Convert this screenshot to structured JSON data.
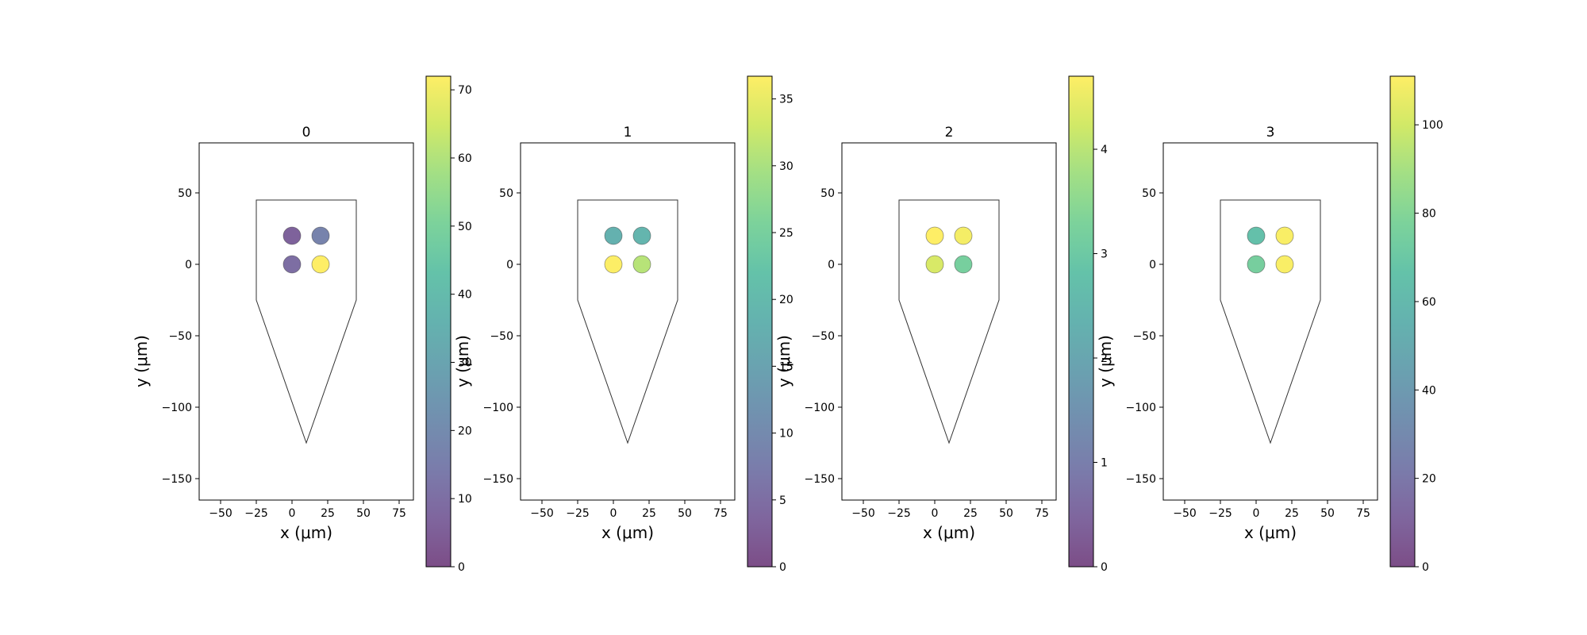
{
  "chart_data": [
    {
      "type": "scatter",
      "title": "0",
      "xlabel": "x (μm)",
      "ylabel": "y (μm)",
      "xlim": [
        -65,
        85
      ],
      "ylim": [
        -165,
        85
      ],
      "xticks": [
        -50,
        -25,
        0,
        25,
        50,
        75
      ],
      "yticks": [
        50,
        0,
        -50,
        -100,
        -150
      ],
      "probe_outline": [
        [
          -25,
          45
        ],
        [
          45,
          45
        ],
        [
          45,
          -25
        ],
        [
          10,
          -125
        ],
        [
          -25,
          -25
        ]
      ],
      "points": [
        {
          "x": 0,
          "y": 20,
          "value": 6
        },
        {
          "x": 20,
          "y": 20,
          "value": 17
        },
        {
          "x": 0,
          "y": 0,
          "value": 10
        },
        {
          "x": 20,
          "y": 0,
          "value": 72
        }
      ],
      "colorbar": {
        "min": 0,
        "max": 72,
        "ticks": [
          "0",
          "10",
          "20",
          "30",
          "40",
          "50",
          "60",
          "70"
        ],
        "tick_values": [
          0,
          10,
          20,
          30,
          40,
          50,
          60,
          70
        ]
      },
      "grid": false
    },
    {
      "type": "scatter",
      "title": "1",
      "xlabel": "x (μm)",
      "ylabel": "y (μm)",
      "xlim": [
        -65,
        85
      ],
      "ylim": [
        -165,
        85
      ],
      "xticks": [
        -50,
        -25,
        0,
        25,
        50,
        75
      ],
      "yticks": [
        50,
        0,
        -50,
        -100,
        -150
      ],
      "probe_outline": [
        [
          -25,
          45
        ],
        [
          45,
          45
        ],
        [
          45,
          -25
        ],
        [
          10,
          -125
        ],
        [
          -25,
          -25
        ]
      ],
      "points": [
        {
          "x": 0,
          "y": 20,
          "value": 18
        },
        {
          "x": 20,
          "y": 20,
          "value": 19
        },
        {
          "x": 0,
          "y": 0,
          "value": 36.5
        },
        {
          "x": 20,
          "y": 0,
          "value": 31
        }
      ],
      "colorbar": {
        "min": 0,
        "max": 36.7,
        "ticks": [
          "0",
          "5",
          "10",
          "15",
          "20",
          "25",
          "30",
          "35"
        ],
        "tick_values": [
          0,
          5,
          10,
          15,
          20,
          25,
          30,
          35
        ]
      },
      "grid": false
    },
    {
      "type": "scatter",
      "title": "2",
      "xlabel": "x (μm)",
      "ylabel": "y (μm)",
      "xlim": [
        -65,
        85
      ],
      "ylim": [
        -165,
        85
      ],
      "xticks": [
        -50,
        -25,
        0,
        25,
        50,
        75
      ],
      "yticks": [
        50,
        0,
        -50,
        -100,
        -150
      ],
      "probe_outline": [
        [
          -25,
          45
        ],
        [
          45,
          45
        ],
        [
          45,
          -25
        ],
        [
          10,
          -125
        ],
        [
          -25,
          -25
        ]
      ],
      "points": [
        {
          "x": 0,
          "y": 20,
          "value": 4.7
        },
        {
          "x": 20,
          "y": 20,
          "value": 4.6
        },
        {
          "x": 0,
          "y": 0,
          "value": 4.3
        },
        {
          "x": 20,
          "y": 0,
          "value": 3.2
        }
      ],
      "colorbar": {
        "min": 0,
        "max": 4.7,
        "ticks": [
          "0",
          "1",
          "2",
          "3",
          "4"
        ],
        "tick_values": [
          0,
          1,
          2,
          3,
          4
        ]
      },
      "grid": false
    },
    {
      "type": "scatter",
      "title": "3",
      "xlabel": "x (μm)",
      "ylabel": "y (μm)",
      "xlim": [
        -65,
        85
      ],
      "ylim": [
        -165,
        85
      ],
      "xticks": [
        -50,
        -25,
        0,
        25,
        50,
        75
      ],
      "yticks": [
        50,
        0,
        -50,
        -100,
        -150
      ],
      "probe_outline": [
        [
          -25,
          45
        ],
        [
          45,
          45
        ],
        [
          45,
          -25
        ],
        [
          10,
          -125
        ],
        [
          -25,
          -25
        ]
      ],
      "points": [
        {
          "x": 0,
          "y": 20,
          "value": 65
        },
        {
          "x": 20,
          "y": 20,
          "value": 110
        },
        {
          "x": 0,
          "y": 0,
          "value": 75
        },
        {
          "x": 20,
          "y": 0,
          "value": 110
        }
      ],
      "colorbar": {
        "min": 0,
        "max": 111,
        "ticks": [
          "0",
          "20",
          "40",
          "60",
          "80",
          "100"
        ],
        "tick_values": [
          0,
          20,
          40,
          60,
          80,
          100
        ]
      },
      "grid": false
    }
  ],
  "style": {
    "colormap": "viridis",
    "marker_alpha": 0.7,
    "outline_color": "#333333"
  }
}
